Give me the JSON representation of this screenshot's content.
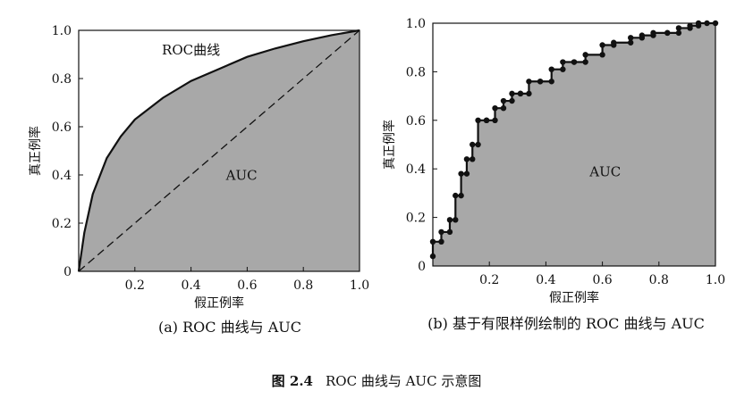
{
  "figure_caption": {
    "number": "图 2.4",
    "title": "ROC 曲线与 AUC 示意图"
  },
  "chart_data": [
    {
      "type": "line",
      "caption": "(a) ROC 曲线与 AUC",
      "xlabel": "假正例率",
      "ylabel": "真正例率",
      "xlim": [
        0,
        1.0
      ],
      "ylim": [
        0,
        1.0
      ],
      "x_ticks": [
        "0.2",
        "0.4",
        "0.6",
        "0.8",
        "1.0"
      ],
      "y_ticks": [
        "0",
        "0.2",
        "0.4",
        "0.6",
        "0.8",
        "1.0"
      ],
      "annotations": [
        "ROC曲线",
        "AUC"
      ],
      "shading": "area under curve",
      "series": [
        {
          "style": "solid",
          "x": [
            0,
            0.02,
            0.05,
            0.1,
            0.15,
            0.2,
            0.3,
            0.4,
            0.5,
            0.6,
            0.7,
            0.8,
            0.9,
            1.0
          ],
          "y": [
            0,
            0.16,
            0.32,
            0.47,
            0.56,
            0.63,
            0.72,
            0.79,
            0.84,
            0.89,
            0.925,
            0.955,
            0.98,
            1.0
          ]
        },
        {
          "style": "dashed",
          "x": [
            0,
            1.0
          ],
          "y": [
            0,
            1.0
          ]
        }
      ]
    },
    {
      "type": "line",
      "caption": "(b) 基于有限样例绘制的 ROC 曲线与 AUC",
      "xlabel": "假正例率",
      "ylabel": "真正例率",
      "xlim": [
        0,
        1.0
      ],
      "ylim": [
        0,
        1.0
      ],
      "x_ticks": [
        "0.2",
        "0.4",
        "0.6",
        "0.8",
        "1.0"
      ],
      "y_ticks": [
        "0",
        "0.2",
        "0.4",
        "0.6",
        "0.8",
        "1.0"
      ],
      "annotations": [
        "AUC"
      ],
      "shading": "area under curve",
      "series": [
        {
          "style": "step-with-markers",
          "x": [
            0,
            0,
            0.03,
            0.03,
            0.06,
            0.06,
            0.08,
            0.08,
            0.1,
            0.1,
            0.12,
            0.12,
            0.14,
            0.14,
            0.16,
            0.16,
            0.19,
            0.19,
            0.22,
            0.22,
            0.25,
            0.25,
            0.28,
            0.28,
            0.31,
            0.31,
            0.34,
            0.34,
            0.38,
            0.38,
            0.42,
            0.42,
            0.46,
            0.46,
            0.5,
            0.5,
            0.54,
            0.54,
            0.6,
            0.6,
            0.64,
            0.64,
            0.7,
            0.7,
            0.74,
            0.74,
            0.78,
            0.78,
            0.83,
            0.83,
            0.87,
            0.87,
            0.91,
            0.91,
            0.94,
            0.94,
            0.97,
            1.0
          ],
          "y": [
            0.04,
            0.1,
            0.1,
            0.14,
            0.14,
            0.19,
            0.19,
            0.29,
            0.29,
            0.38,
            0.38,
            0.44,
            0.44,
            0.5,
            0.5,
            0.6,
            0.6,
            0.6,
            0.6,
            0.65,
            0.65,
            0.68,
            0.68,
            0.71,
            0.71,
            0.71,
            0.71,
            0.76,
            0.76,
            0.76,
            0.76,
            0.81,
            0.81,
            0.84,
            0.84,
            0.84,
            0.84,
            0.87,
            0.87,
            0.91,
            0.91,
            0.92,
            0.92,
            0.94,
            0.94,
            0.95,
            0.95,
            0.96,
            0.96,
            0.96,
            0.96,
            0.98,
            0.98,
            0.99,
            0.99,
            1.0,
            1.0,
            1.0
          ]
        }
      ]
    }
  ]
}
